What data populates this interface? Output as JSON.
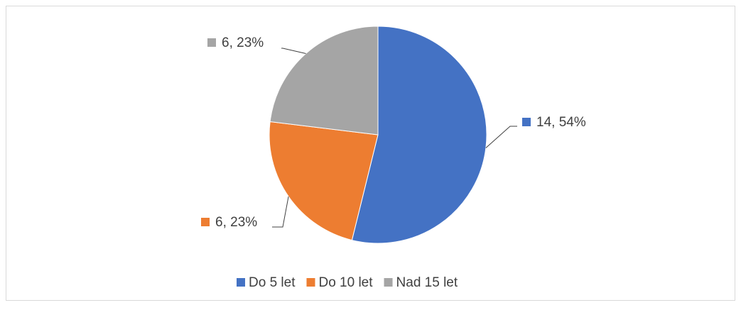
{
  "chart_data": {
    "type": "pie",
    "categories": [
      "Do 5 let",
      "Do 10 let",
      "Nad 15 let"
    ],
    "values": [
      14,
      6,
      6
    ],
    "value_labels": [
      "14, 54%",
      "6, 23%",
      "6, 23%"
    ],
    "colors": [
      "#4472c4",
      "#ed7d31",
      "#a5a5a5"
    ],
    "legend": "bottom"
  }
}
